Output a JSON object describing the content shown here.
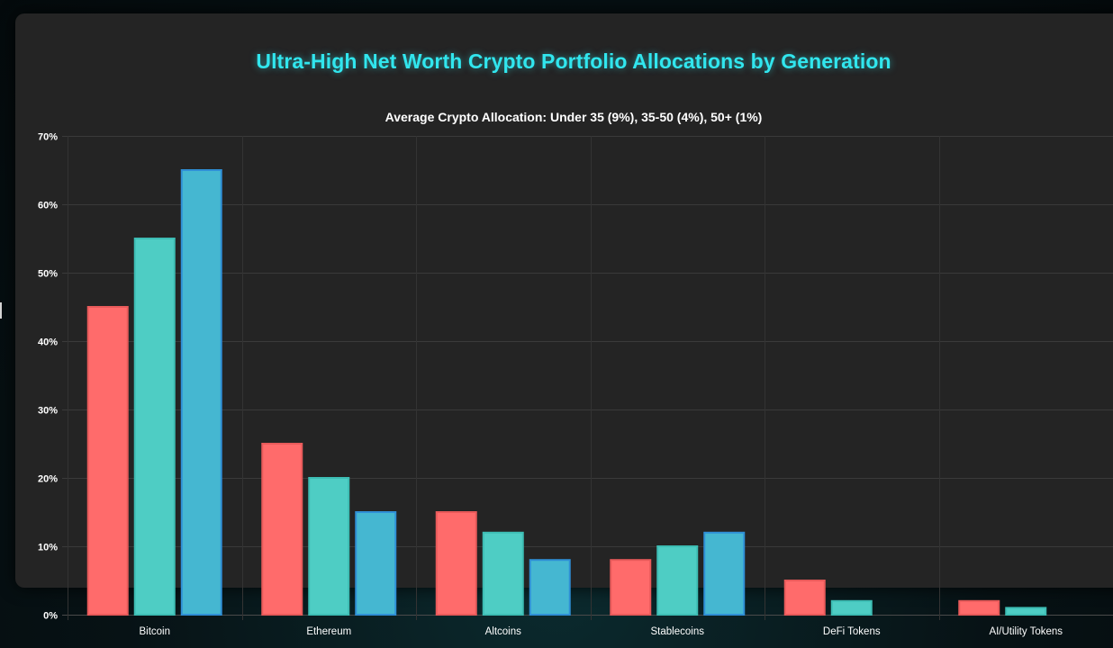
{
  "chart_data": {
    "type": "bar",
    "title": "Ultra-High Net Worth Crypto Portfolio Allocations by Generation",
    "subtitle": "Average Crypto Allocation: Under 35 (9%), 35-50 (4%), 50+ (1%)",
    "categories": [
      "Bitcoin",
      "Ethereum",
      "Altcoins",
      "Stablecoins",
      "DeFi Tokens",
      "AI/Utility Tokens"
    ],
    "series": [
      {
        "name": "Under 35",
        "color": "#ff6b6b",
        "border": "#e85a5a",
        "values": [
          45,
          25,
          15,
          8,
          5,
          2
        ]
      },
      {
        "name": "35-50",
        "color": "#4ecdc4",
        "border": "#3dbdb4",
        "values": [
          55,
          20,
          12,
          10,
          2,
          1
        ]
      },
      {
        "name": "50+",
        "color": "#45b7d1",
        "border": "#2f8fd6",
        "values": [
          65,
          15,
          8,
          12,
          0,
          0
        ]
      }
    ],
    "ylim": [
      0,
      70
    ],
    "yticks": [
      0,
      10,
      20,
      30,
      40,
      50,
      60,
      70
    ],
    "ytick_labels": [
      "0%",
      "10%",
      "20%",
      "30%",
      "40%",
      "50%",
      "60%",
      "70%"
    ],
    "grid": true,
    "xlabel": "",
    "ylabel": ""
  }
}
